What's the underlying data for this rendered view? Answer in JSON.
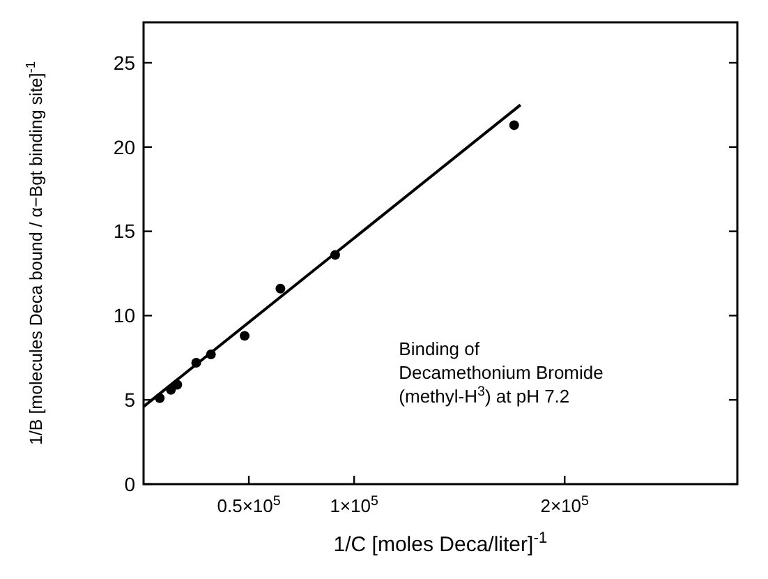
{
  "chart_data": {
    "type": "scatter",
    "xlabel": "1/C [moles Deca/liter]$^{-1}$",
    "ylabel": "1/B [molecules Deca bound / α−Bgt binding site]$^{-1}$",
    "annotations": [
      "Binding of\nDecamethonium Bromide\n(methyl-H$^{3}$) at pH 7.2"
    ],
    "xlim": [
      0,
      282000
    ],
    "ylim": [
      0,
      27.4
    ],
    "xticks": [
      {
        "value": 50000,
        "label": "0.5×10$^{5}$"
      },
      {
        "value": 100000,
        "label": "1×10$^{5}$"
      },
      {
        "value": 200000,
        "label": "2×10$^{5}$"
      }
    ],
    "yticks": [
      0,
      5,
      10,
      15,
      20,
      25
    ],
    "grid": false,
    "marker": "circle",
    "series": [
      {
        "color": "#000000",
        "x": [
          7700,
          13000,
          16000,
          25000,
          32000,
          48000,
          65000,
          91000,
          176000
        ],
        "values": [
          5.1,
          5.6,
          5.9,
          7.2,
          7.7,
          8.8,
          11.6,
          13.6,
          21.3
        ]
      },
      {
        "type": "line",
        "color": "#000000",
        "marker": "none",
        "line_style": "solid",
        "x": [
          0,
          179000
        ],
        "values": [
          4.6,
          22.5
        ]
      }
    ]
  }
}
